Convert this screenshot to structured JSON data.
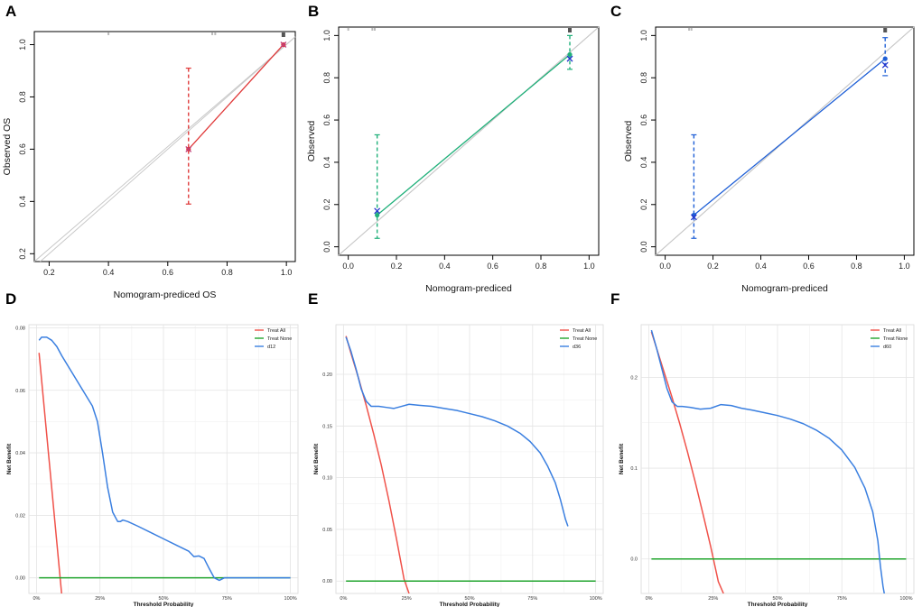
{
  "figure": {
    "panels": [
      "A",
      "B",
      "C",
      "D",
      "E",
      "F"
    ]
  },
  "chart_data": [
    {
      "panel": "A",
      "type": "scatter",
      "title": "",
      "xlabel": "Nomogram-prediced OS",
      "ylabel": "Observed OS",
      "xlim": [
        0.15,
        1.03
      ],
      "ylim": [
        0.17,
        1.05
      ],
      "xticks": [
        0.2,
        0.4,
        0.6,
        0.8,
        1.0
      ],
      "xtick_labels": [
        "0.2",
        "0.4",
        "0.6",
        "0.8",
        "1.0"
      ],
      "yticks": [
        0.2,
        0.4,
        0.6,
        0.8,
        1.0
      ],
      "ytick_labels": [
        "0.2",
        "0.4",
        "0.6",
        "0.8",
        "1.0"
      ],
      "color": "#e03a3a",
      "ideal_line": true,
      "calibration": {
        "x": [
          0.67,
          0.99
        ],
        "y": [
          0.6,
          1.0
        ],
        "ci_low": [
          0.39,
          1.0
        ],
        "ci_high": [
          0.91,
          1.0
        ]
      },
      "observed_x": {
        "x": [
          0.67,
          0.99
        ],
        "y": [
          0.6,
          1.0
        ]
      },
      "rug": [
        0.4,
        0.75,
        0.76,
        0.99
      ]
    },
    {
      "panel": "B",
      "type": "scatter",
      "title": "",
      "xlabel": "Nomogram-prediced",
      "ylabel": "Observed",
      "xlim": [
        -0.04,
        1.04
      ],
      "ylim": [
        -0.04,
        1.04
      ],
      "xticks": [
        0.0,
        0.2,
        0.4,
        0.6,
        0.8,
        1.0
      ],
      "xtick_labels": [
        "0.0",
        "0.2",
        "0.4",
        "0.6",
        "0.8",
        "1.0"
      ],
      "yticks": [
        0.0,
        0.2,
        0.4,
        0.6,
        0.8,
        1.0
      ],
      "ytick_labels": [
        "0.0",
        "0.2",
        "0.4",
        "0.6",
        "0.8",
        "1.0"
      ],
      "color": "#20b07a",
      "ideal_line": true,
      "calibration": {
        "x": [
          0.12,
          0.92
        ],
        "y": [
          0.15,
          0.91
        ],
        "ci_low": [
          0.04,
          0.84
        ],
        "ci_high": [
          0.53,
          1.0
        ]
      },
      "observed_x": {
        "x": [
          0.12,
          0.92
        ],
        "y": [
          0.17,
          0.89
        ]
      },
      "rug": [
        0.0,
        0.1,
        0.11,
        0.92
      ]
    },
    {
      "panel": "C",
      "type": "scatter",
      "title": "",
      "xlabel": "Nomogram-prediced",
      "ylabel": "Observed",
      "xlim": [
        -0.04,
        1.04
      ],
      "ylim": [
        -0.04,
        1.04
      ],
      "xticks": [
        0.0,
        0.2,
        0.4,
        0.6,
        0.8,
        1.0
      ],
      "xtick_labels": [
        "0.0",
        "0.2",
        "0.4",
        "0.6",
        "0.8",
        "1.0"
      ],
      "yticks": [
        0.0,
        0.2,
        0.4,
        0.6,
        0.8,
        1.0
      ],
      "ytick_labels": [
        "0.0",
        "0.2",
        "0.4",
        "0.6",
        "0.8",
        "1.0"
      ],
      "color": "#1e5fd6",
      "ideal_line": true,
      "calibration": {
        "x": [
          0.12,
          0.92
        ],
        "y": [
          0.15,
          0.89
        ],
        "ci_low": [
          0.04,
          0.81
        ],
        "ci_high": [
          0.53,
          0.99
        ]
      },
      "observed_x": {
        "x": [
          0.12,
          0.92
        ],
        "y": [
          0.14,
          0.86
        ]
      },
      "rug": [
        0.1,
        0.11,
        0.92
      ]
    },
    {
      "panel": "D",
      "type": "line",
      "xlabel": "Threshold Probability",
      "ylabel": "Net Benefit",
      "xlim": [
        -0.03,
        1.03
      ],
      "ylim": [
        -0.005,
        0.081
      ],
      "xticks": [
        0,
        0.25,
        0.5,
        0.75,
        1.0
      ],
      "xtick_labels": [
        "0%",
        "25%",
        "50%",
        "75%",
        "100%"
      ],
      "yticks": [
        0.0,
        0.02,
        0.04,
        0.06,
        0.08
      ],
      "ytick_labels": [
        "0.00",
        "0.02",
        "0.04",
        "0.06",
        "0.08"
      ],
      "legend": [
        "Treat All",
        "Treat None",
        "d12"
      ],
      "series": [
        {
          "name": "Treat All",
          "color": "#f0524a",
          "x": [
            0.01,
            0.1
          ],
          "y": [
            0.072,
            -0.006
          ]
        },
        {
          "name": "Treat None",
          "color": "#22a52e",
          "x": [
            0.01,
            1.0
          ],
          "y": [
            0.0,
            0.0
          ]
        },
        {
          "name": "d12",
          "color": "#3a7fe0",
          "x": [
            0.01,
            0.02,
            0.04,
            0.06,
            0.08,
            0.1,
            0.13,
            0.16,
            0.19,
            0.22,
            0.24,
            0.26,
            0.28,
            0.3,
            0.32,
            0.33,
            0.34,
            0.36,
            0.4,
            0.45,
            0.5,
            0.55,
            0.6,
            0.62,
            0.64,
            0.66,
            0.68,
            0.7,
            0.72,
            0.74,
            0.8,
            0.9,
            1.0
          ],
          "y": [
            0.076,
            0.077,
            0.077,
            0.076,
            0.074,
            0.071,
            0.067,
            0.063,
            0.059,
            0.055,
            0.05,
            0.04,
            0.029,
            0.021,
            0.018,
            0.018,
            0.0185,
            0.018,
            0.0165,
            0.0145,
            0.0125,
            0.0105,
            0.0085,
            0.0068,
            0.007,
            0.0062,
            0.003,
            0.0,
            -0.0008,
            0.0,
            0.0,
            0.0,
            0.0
          ]
        }
      ]
    },
    {
      "panel": "E",
      "type": "line",
      "xlabel": "Threshold Probability",
      "ylabel": "Net Benefit",
      "xlim": [
        -0.03,
        1.03
      ],
      "ylim": [
        -0.012,
        0.248
      ],
      "xticks": [
        0,
        0.25,
        0.5,
        0.75,
        1.0
      ],
      "xtick_labels": [
        "0%",
        "25%",
        "50%",
        "75%",
        "100%"
      ],
      "yticks": [
        0.0,
        0.05,
        0.1,
        0.15,
        0.2
      ],
      "ytick_labels": [
        "0.00",
        "0.05",
        "0.10",
        "0.15",
        "0.20"
      ],
      "legend": [
        "Treat All",
        "Treat None",
        "d36"
      ],
      "series": [
        {
          "name": "Treat All",
          "color": "#f0524a",
          "x": [
            0.01,
            0.03,
            0.06,
            0.09,
            0.12,
            0.15,
            0.18,
            0.21,
            0.24,
            0.26
          ],
          "y": [
            0.237,
            0.22,
            0.196,
            0.17,
            0.142,
            0.112,
            0.078,
            0.041,
            0.002,
            -0.012
          ]
        },
        {
          "name": "Treat None",
          "color": "#22a52e",
          "x": [
            0.01,
            1.0
          ],
          "y": [
            0.0,
            0.0
          ]
        },
        {
          "name": "d36",
          "color": "#3a7fe0",
          "x": [
            0.01,
            0.03,
            0.05,
            0.07,
            0.09,
            0.11,
            0.14,
            0.17,
            0.2,
            0.23,
            0.26,
            0.3,
            0.35,
            0.4,
            0.45,
            0.5,
            0.55,
            0.6,
            0.65,
            0.7,
            0.74,
            0.78,
            0.81,
            0.84,
            0.86,
            0.88,
            0.89
          ],
          "y": [
            0.236,
            0.222,
            0.205,
            0.186,
            0.174,
            0.169,
            0.169,
            0.168,
            0.167,
            0.169,
            0.171,
            0.17,
            0.169,
            0.167,
            0.165,
            0.162,
            0.159,
            0.155,
            0.15,
            0.143,
            0.135,
            0.124,
            0.111,
            0.095,
            0.079,
            0.06,
            0.053
          ]
        }
      ]
    },
    {
      "panel": "F",
      "type": "line",
      "xlabel": "Threshold Probability",
      "ylabel": "Net Benefit",
      "xlim": [
        -0.03,
        1.03
      ],
      "ylim": [
        -0.038,
        0.258
      ],
      "xticks": [
        0,
        0.25,
        0.5,
        0.75,
        1.0
      ],
      "xtick_labels": [
        "0%",
        "25%",
        "50%",
        "75%",
        "100%"
      ],
      "yticks": [
        0.0,
        0.1,
        0.2
      ],
      "ytick_labels": [
        "0.0",
        "0.1",
        "0.2"
      ],
      "legend": [
        "Treat All",
        "Treat None",
        "d60"
      ],
      "series": [
        {
          "name": "Treat All",
          "color": "#f0524a",
          "x": [
            0.01,
            0.03,
            0.06,
            0.09,
            0.12,
            0.15,
            0.18,
            0.21,
            0.24,
            0.27,
            0.29
          ],
          "y": [
            0.25,
            0.232,
            0.205,
            0.178,
            0.149,
            0.118,
            0.085,
            0.05,
            0.014,
            -0.025,
            -0.038
          ]
        },
        {
          "name": "Treat None",
          "color": "#22a52e",
          "x": [
            0.01,
            1.0
          ],
          "y": [
            0.0,
            0.0
          ]
        },
        {
          "name": "d60",
          "color": "#3a7fe0",
          "x": [
            0.01,
            0.03,
            0.05,
            0.07,
            0.09,
            0.11,
            0.13,
            0.16,
            0.2,
            0.24,
            0.28,
            0.32,
            0.36,
            0.4,
            0.45,
            0.5,
            0.55,
            0.6,
            0.65,
            0.7,
            0.75,
            0.8,
            0.84,
            0.87,
            0.89,
            0.9,
            0.91,
            0.915
          ],
          "y": [
            0.252,
            0.232,
            0.21,
            0.188,
            0.173,
            0.168,
            0.168,
            0.167,
            0.165,
            0.166,
            0.17,
            0.169,
            0.166,
            0.164,
            0.161,
            0.158,
            0.154,
            0.149,
            0.142,
            0.133,
            0.12,
            0.101,
            0.078,
            0.052,
            0.02,
            -0.008,
            -0.03,
            -0.038
          ]
        }
      ]
    }
  ]
}
